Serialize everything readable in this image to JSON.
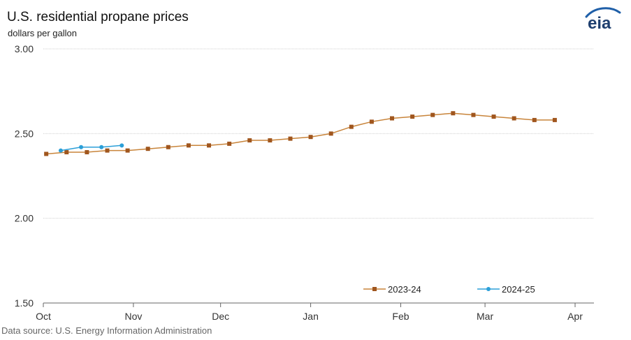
{
  "header": {
    "title": "U.S. residential propane prices",
    "subtitle": "dollars per gallon",
    "logo_text": "eia"
  },
  "footer": {
    "source": "Data source: U.S. Energy Information Administration"
  },
  "colors": {
    "series_2023": "#c8843a",
    "series_2023_marker": "#a0561e",
    "series_2024": "#2b9fd8",
    "grid": "#cfcfcf",
    "axis": "#666666"
  },
  "chart_data": {
    "type": "line",
    "x_tick_labels": [
      "Oct",
      "Nov",
      "Dec",
      "Jan",
      "Feb",
      "Mar",
      "Apr"
    ],
    "y_tick_labels": [
      "3.00",
      "2.50",
      "2.00",
      "1.50"
    ],
    "ylim": [
      1.5,
      3.0
    ],
    "y_ticks": [
      3.0,
      2.5,
      2.0,
      1.5
    ],
    "grid": true,
    "legend_position": "bottom-right",
    "series": [
      {
        "name": "2023-24",
        "marker": "square",
        "color": "#c8843a",
        "points": [
          [
            "Oct 2",
            2.38
          ],
          [
            "Oct 9",
            2.39
          ],
          [
            "Oct 16",
            2.39
          ],
          [
            "Oct 23",
            2.4
          ],
          [
            "Oct 30",
            2.4
          ],
          [
            "Nov 6",
            2.41
          ],
          [
            "Nov 13",
            2.42
          ],
          [
            "Nov 20",
            2.43
          ],
          [
            "Nov 27",
            2.43
          ],
          [
            "Dec 4",
            2.44
          ],
          [
            "Dec 11",
            2.46
          ],
          [
            "Dec 18",
            2.46
          ],
          [
            "Dec 25",
            2.47
          ],
          [
            "Jan 1",
            2.48
          ],
          [
            "Jan 8",
            2.5
          ],
          [
            "Jan 15",
            2.54
          ],
          [
            "Jan 22",
            2.57
          ],
          [
            "Jan 29",
            2.59
          ],
          [
            "Feb 5",
            2.6
          ],
          [
            "Feb 12",
            2.61
          ],
          [
            "Feb 19",
            2.62
          ],
          [
            "Feb 26",
            2.61
          ],
          [
            "Mar 4",
            2.6
          ],
          [
            "Mar 11",
            2.59
          ],
          [
            "Mar 18",
            2.58
          ],
          [
            "Mar 25",
            2.58
          ]
        ]
      },
      {
        "name": "2024-25",
        "marker": "circle",
        "color": "#2b9fd8",
        "points": [
          [
            "Oct 7",
            2.4
          ],
          [
            "Oct 14",
            2.42
          ],
          [
            "Oct 21",
            2.42
          ],
          [
            "Oct 28",
            2.43
          ]
        ]
      }
    ]
  }
}
